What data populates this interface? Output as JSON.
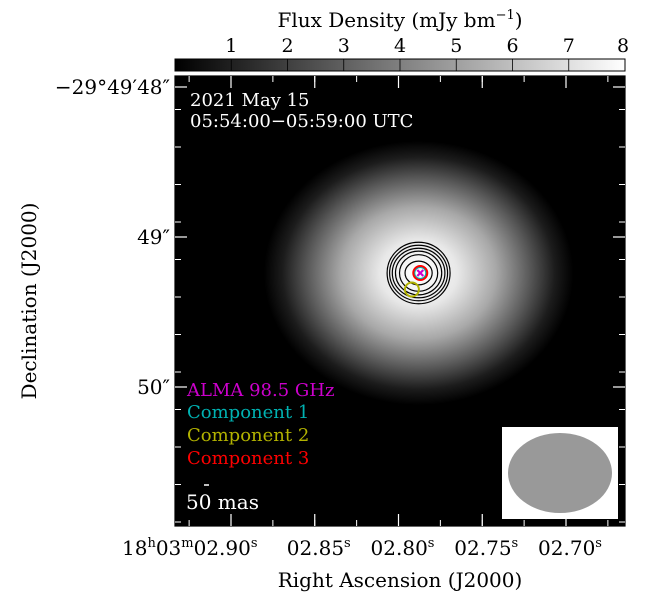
{
  "chart_data": {
    "type": "heatmap",
    "colorbar": {
      "label": "Flux  Density (mJy bm",
      "label_sup": "−1",
      "label_close": ")",
      "ticks": [
        1,
        2,
        3,
        4,
        5,
        6,
        7,
        8
      ],
      "range": [
        0,
        8
      ],
      "colormap": "black-to-white"
    },
    "xlabel": "Right Ascension (J2000)",
    "ylabel": "Declination (J2000)",
    "x_ticks": [
      {
        "value": 2.9,
        "lead": "18",
        "h": "h",
        "mid": "03",
        "m": "m",
        "text": "02.90",
        "s": "s"
      },
      {
        "value": 2.85,
        "text": "02.85",
        "s": "s"
      },
      {
        "value": 2.8,
        "text": "02.80",
        "s": "s"
      },
      {
        "value": 2.75,
        "text": "02.75",
        "s": "s"
      },
      {
        "value": 2.7,
        "text": "02.70",
        "s": "s"
      }
    ],
    "y_ticks": [
      {
        "value": 48.0,
        "text": "−29°49′48″"
      },
      {
        "value": 49.0,
        "text": "49″"
      },
      {
        "value": 50.0,
        "text": "50″"
      }
    ],
    "epoch": [
      "2021 May 15",
      "05:54:00−05:59:00 UTC"
    ],
    "source": {
      "ra_s": 2.788,
      "dec_s": 49.24,
      "peak_mJy": 8.0,
      "sigma_ra_s": 0.021,
      "sigma_dec_as": 0.22
    },
    "contour_semi_axes": [
      [
        0.0081,
        0.079
      ],
      [
        0.0114,
        0.122
      ],
      [
        0.0138,
        0.146
      ],
      [
        0.0157,
        0.165
      ],
      [
        0.0173,
        0.185
      ],
      [
        0.0188,
        0.205
      ]
    ],
    "markers": [
      {
        "label": "ALMA 98.5 GHz",
        "color": "#cc00cc",
        "shape": "cross",
        "ra_s": 2.787,
        "dec_s": 49.24
      },
      {
        "label": "Component 1",
        "color": "#00b2b2",
        "shape": "circle",
        "ra_s": 2.787,
        "dec_s": 49.24
      },
      {
        "label": "Component 2",
        "color": "#b2b200",
        "shape": "circle",
        "ra_s": 2.792,
        "dec_s": 49.35
      },
      {
        "label": "Component 3",
        "color": "#ff0000",
        "shape": "circle",
        "ra_s": 2.787,
        "dec_s": 49.24
      }
    ],
    "legend_position": "bottom-left",
    "scale_bar": {
      "label": "50 mas"
    },
    "beam": {
      "shape": "ellipse",
      "color": "#999999",
      "position": "bottom-right"
    }
  }
}
